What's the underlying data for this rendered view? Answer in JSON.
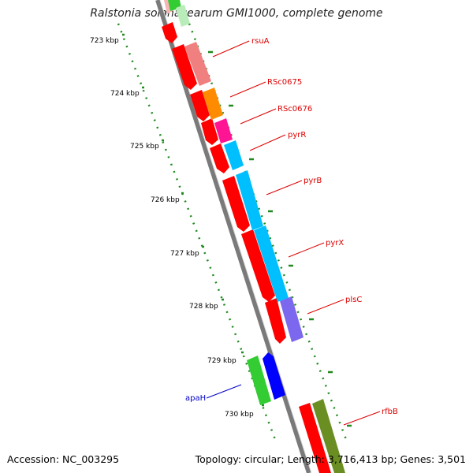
{
  "title": "Ralstonia solanacearum GMI1000, complete genome",
  "footer": {
    "accession": "Accession: NC_003295",
    "summary": "Topology: circular; Length: 3,716,413 bp; Genes: 3,501"
  },
  "colors": {
    "backbone": "#7a7a7a",
    "ticks": "#1f8a1f",
    "label_red": "#dd0000",
    "label_blue": "#0000cc"
  },
  "kbp_ticks": [
    "723 kbp",
    "724 kbp",
    "725 kbp",
    "726 kbp",
    "727 kbp",
    "728 kbp",
    "729 kbp",
    "730 kbp"
  ],
  "genes": [
    {
      "name": "rsuA",
      "color": "#f08080",
      "label_color": "#dd0000"
    },
    {
      "name": "RSc0675",
      "color": "#ff8c00",
      "label_color": "#dd0000"
    },
    {
      "name": "RSc0676",
      "color": "#ff1493",
      "label_color": "#dd0000"
    },
    {
      "name": "pyrR",
      "color": "#00bfff",
      "label_color": "#dd0000"
    },
    {
      "name": "pyrB",
      "color": "#00bfff",
      "label_color": "#dd0000"
    },
    {
      "name": "pyrX",
      "color": "#00bfff",
      "label_color": "#dd0000"
    },
    {
      "name": "plsC",
      "color": "#7b68ee",
      "label_color": "#dd0000"
    },
    {
      "name": "apaH",
      "color": "#0000ff",
      "label_color": "#0000cc"
    },
    {
      "name": "rfbB",
      "color": "#6b8e23",
      "label_color": "#dd0000"
    }
  ]
}
